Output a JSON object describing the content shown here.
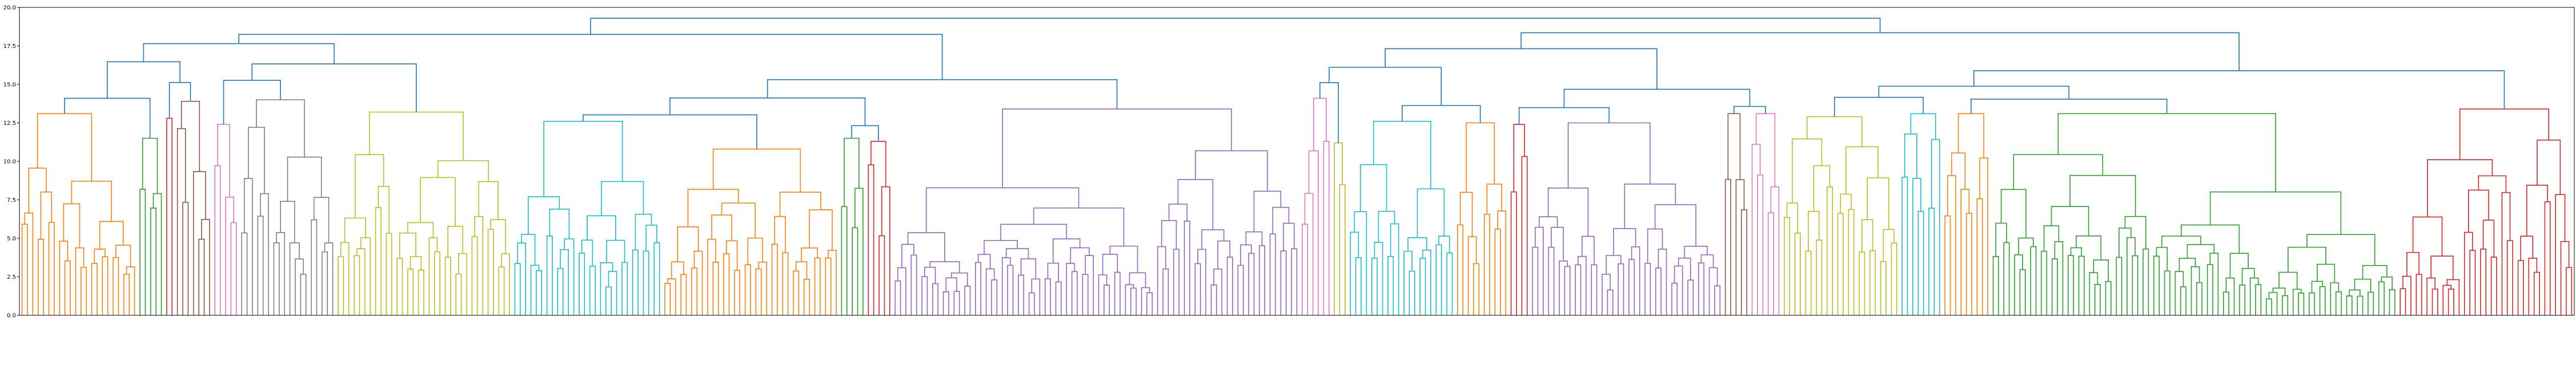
{
  "chart_data": {
    "type": "dendrogram",
    "title": "",
    "xlabel": "",
    "ylabel": "",
    "ylim": [
      0,
      20
    ],
    "yticks": [
      "0.0",
      "2.5",
      "5.0",
      "7.5",
      "10.0",
      "12.5",
      "15.0",
      "17.5",
      "20.0"
    ],
    "grid": false,
    "legend": "none",
    "root_height": 19.3,
    "cluster_colors": [
      "#ff7f0e",
      "#2ca02c",
      "#d62728",
      "#9467bd",
      "#8c564b",
      "#e377c2",
      "#7f7f7f",
      "#bcbd22",
      "#17becf",
      "#1f77b4"
    ],
    "above_threshold_color": "#1f77b4",
    "clusters": [
      {
        "color": "#ff7f0e",
        "leaves": 22,
        "height": 13.1
      },
      {
        "color": "#2ca02c",
        "leaves": 5,
        "height": 11.5
      },
      {
        "color": "#d62728",
        "leaves": 2,
        "height": 12.8
      },
      {
        "color": "#8c564b",
        "leaves": 7,
        "height": 13.9
      },
      {
        "color": "#e377c2",
        "leaves": 5,
        "height": 12.4
      },
      {
        "color": "#7f7f7f",
        "leaves": 18,
        "height": 14.0
      },
      {
        "color": "#bcbd22",
        "leaves": 33,
        "height": 13.2
      },
      {
        "color": "#17becf",
        "leaves": 28,
        "height": 12.6
      },
      {
        "color": "#ff7f0e",
        "leaves": 33,
        "height": 10.8
      },
      {
        "color": "#2ca02c",
        "leaves": 5,
        "height": 11.5
      },
      {
        "color": "#d62728",
        "leaves": 5,
        "height": 11.3
      },
      {
        "color": "#9467bd",
        "leaves": 76,
        "height": 13.4
      },
      {
        "color": "#e377c2",
        "leaves": 6,
        "height": 14.1
      },
      {
        "color": "#bcbd22",
        "leaves": 3,
        "height": 11.2
      },
      {
        "color": "#17becf",
        "leaves": 20,
        "height": 12.6
      },
      {
        "color": "#ff7f0e",
        "leaves": 10,
        "height": 12.5
      },
      {
        "color": "#d62728",
        "leaves": 4,
        "height": 12.4
      },
      {
        "color": "#9467bd",
        "leaves": 36,
        "height": 12.5
      },
      {
        "color": "#8c564b",
        "leaves": 5,
        "height": 13.1
      },
      {
        "color": "#e377c2",
        "leaves": 6,
        "height": 13.1
      },
      {
        "color": "#bcbd22",
        "leaves": 22,
        "height": 12.9
      },
      {
        "color": "#17becf",
        "leaves": 8,
        "height": 13.1
      },
      {
        "color": "#ff7f0e",
        "leaves": 9,
        "height": 13.1
      },
      {
        "color": "#2ca02c",
        "leaves": 76,
        "height": 13.1
      },
      {
        "color": "#d62728",
        "leaves": 33,
        "height": 13.4
      }
    ]
  }
}
